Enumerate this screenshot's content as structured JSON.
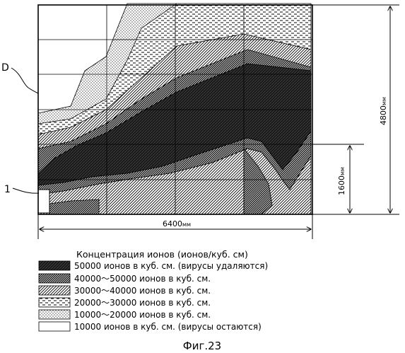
{
  "figure": {
    "caption": "Фиг.23",
    "ref_d": "D",
    "ref_1": "1",
    "dim_width": {
      "value": "6400",
      "unit": "мм"
    },
    "dim_height": {
      "value": "4800",
      "unit": "мм"
    },
    "dim_sub_height": {
      "value": "1600",
      "unit": "мм"
    }
  },
  "legend": {
    "title": "Концентрация ионов (ионов/куб. см)",
    "items": [
      {
        "pattern": "pat-l5",
        "label": "50000 ионов в куб. см. (вирусы удаляются)"
      },
      {
        "pattern": "pat-l4",
        "label": "40000～50000 ионов в куб. см."
      },
      {
        "pattern": "pat-l3",
        "label": "30000～40000 ионов в куб. см."
      },
      {
        "pattern": "pat-l2",
        "label": "20000～30000 ионов в куб. см."
      },
      {
        "pattern": "pat-l1",
        "label": "10000～20000 ионов в куб. см."
      },
      {
        "pattern": "pat-l0",
        "label": "10000 ионов в куб. см. (вирусы остаются)"
      }
    ]
  },
  "colors": {
    "ink": "#000000",
    "paper": "#ffffff"
  }
}
